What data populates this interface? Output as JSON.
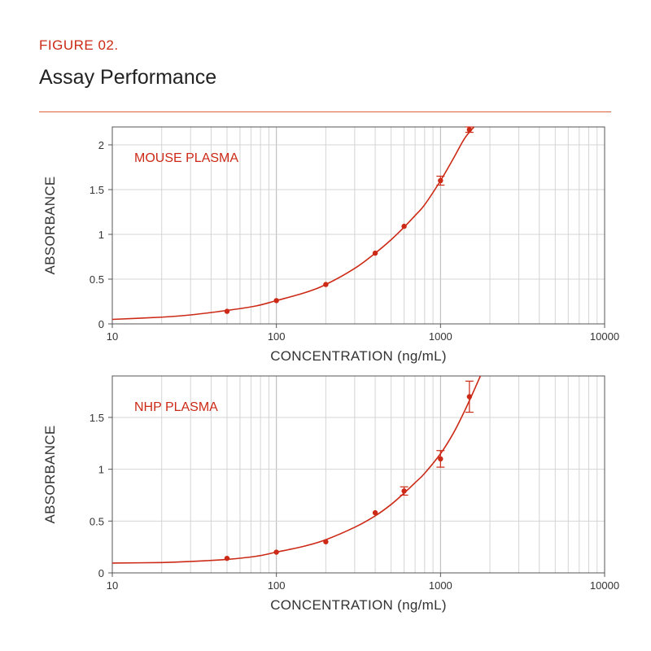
{
  "figure_label": "FIGURE 02.",
  "figure_title": "Assay Performance",
  "colors": {
    "accent": "#cc2a16",
    "rule": "#e0623c",
    "title": "#222222",
    "grid": "#d4d4d4",
    "axis": "#555555",
    "text": "#333333"
  },
  "chart_data": [
    {
      "type": "scatter",
      "panel_label": "MOUSE PLASMA",
      "xlabel": "CONCENTRATION (ng/mL)",
      "ylabel": "ABSORBANCE",
      "x_scale": "log",
      "xlim": [
        10,
        10000
      ],
      "ylim": [
        0,
        2.2
      ],
      "x_ticks": [
        10,
        100,
        1000,
        10000
      ],
      "x_tick_labels": [
        "10",
        "100",
        "1000",
        "10000"
      ],
      "y_ticks": [
        0,
        0.5,
        1,
        1.5,
        2
      ],
      "y_tick_labels": [
        "0",
        "0.5",
        "1",
        "1.5",
        "2"
      ],
      "grid": true,
      "series": [
        {
          "points": [
            {
              "x": 50,
              "y": 0.14,
              "err": 0
            },
            {
              "x": 100,
              "y": 0.26,
              "err": 0
            },
            {
              "x": 200,
              "y": 0.44,
              "err": 0
            },
            {
              "x": 400,
              "y": 0.79,
              "err": 0
            },
            {
              "x": 600,
              "y": 1.09,
              "err": 0
            },
            {
              "x": 1000,
              "y": 1.6,
              "err": 0.05
            },
            {
              "x": 1500,
              "y": 2.17,
              "err": 0.03
            }
          ],
          "fit_curve": {
            "x": [
              10,
              20,
              30,
              50,
              75,
              100,
              150,
              200,
              300,
              400,
              500,
              600,
              700,
              800,
              1000,
              1200,
              1400,
              1600
            ],
            "y": [
              0.05,
              0.075,
              0.1,
              0.15,
              0.2,
              0.26,
              0.35,
              0.44,
              0.62,
              0.79,
              0.94,
              1.08,
              1.21,
              1.33,
              1.6,
              1.85,
              2.07,
              2.2
            ]
          }
        }
      ]
    },
    {
      "type": "scatter",
      "panel_label": "NHP PLASMA",
      "xlabel": "CONCENTRATION (ng/mL)",
      "ylabel": "ABSORBANCE",
      "x_scale": "log",
      "xlim": [
        10,
        10000
      ],
      "ylim": [
        0,
        1.9
      ],
      "x_ticks": [
        10,
        100,
        1000,
        10000
      ],
      "x_tick_labels": [
        "10",
        "100",
        "1000",
        "10000"
      ],
      "y_ticks": [
        0,
        0.5,
        1,
        1.5
      ],
      "y_tick_labels": [
        "0",
        "0.5",
        "1",
        "1.5"
      ],
      "grid": true,
      "series": [
        {
          "points": [
            {
              "x": 50,
              "y": 0.14,
              "err": 0
            },
            {
              "x": 100,
              "y": 0.2,
              "err": 0
            },
            {
              "x": 200,
              "y": 0.3,
              "err": 0
            },
            {
              "x": 400,
              "y": 0.58,
              "err": 0
            },
            {
              "x": 600,
              "y": 0.79,
              "err": 0.04
            },
            {
              "x": 1000,
              "y": 1.1,
              "err": 0.08
            },
            {
              "x": 1500,
              "y": 1.7,
              "err": 0.15
            }
          ],
          "fit_curve": {
            "x": [
              10,
              20,
              30,
              50,
              75,
              100,
              150,
              200,
              300,
              400,
              500,
              600,
              700,
              800,
              1000,
              1200,
              1400,
              1600,
              1750
            ],
            "y": [
              0.095,
              0.1,
              0.11,
              0.13,
              0.16,
              0.2,
              0.26,
              0.32,
              0.44,
              0.55,
              0.66,
              0.77,
              0.87,
              0.96,
              1.15,
              1.35,
              1.56,
              1.76,
              1.9
            ]
          }
        }
      ]
    }
  ]
}
